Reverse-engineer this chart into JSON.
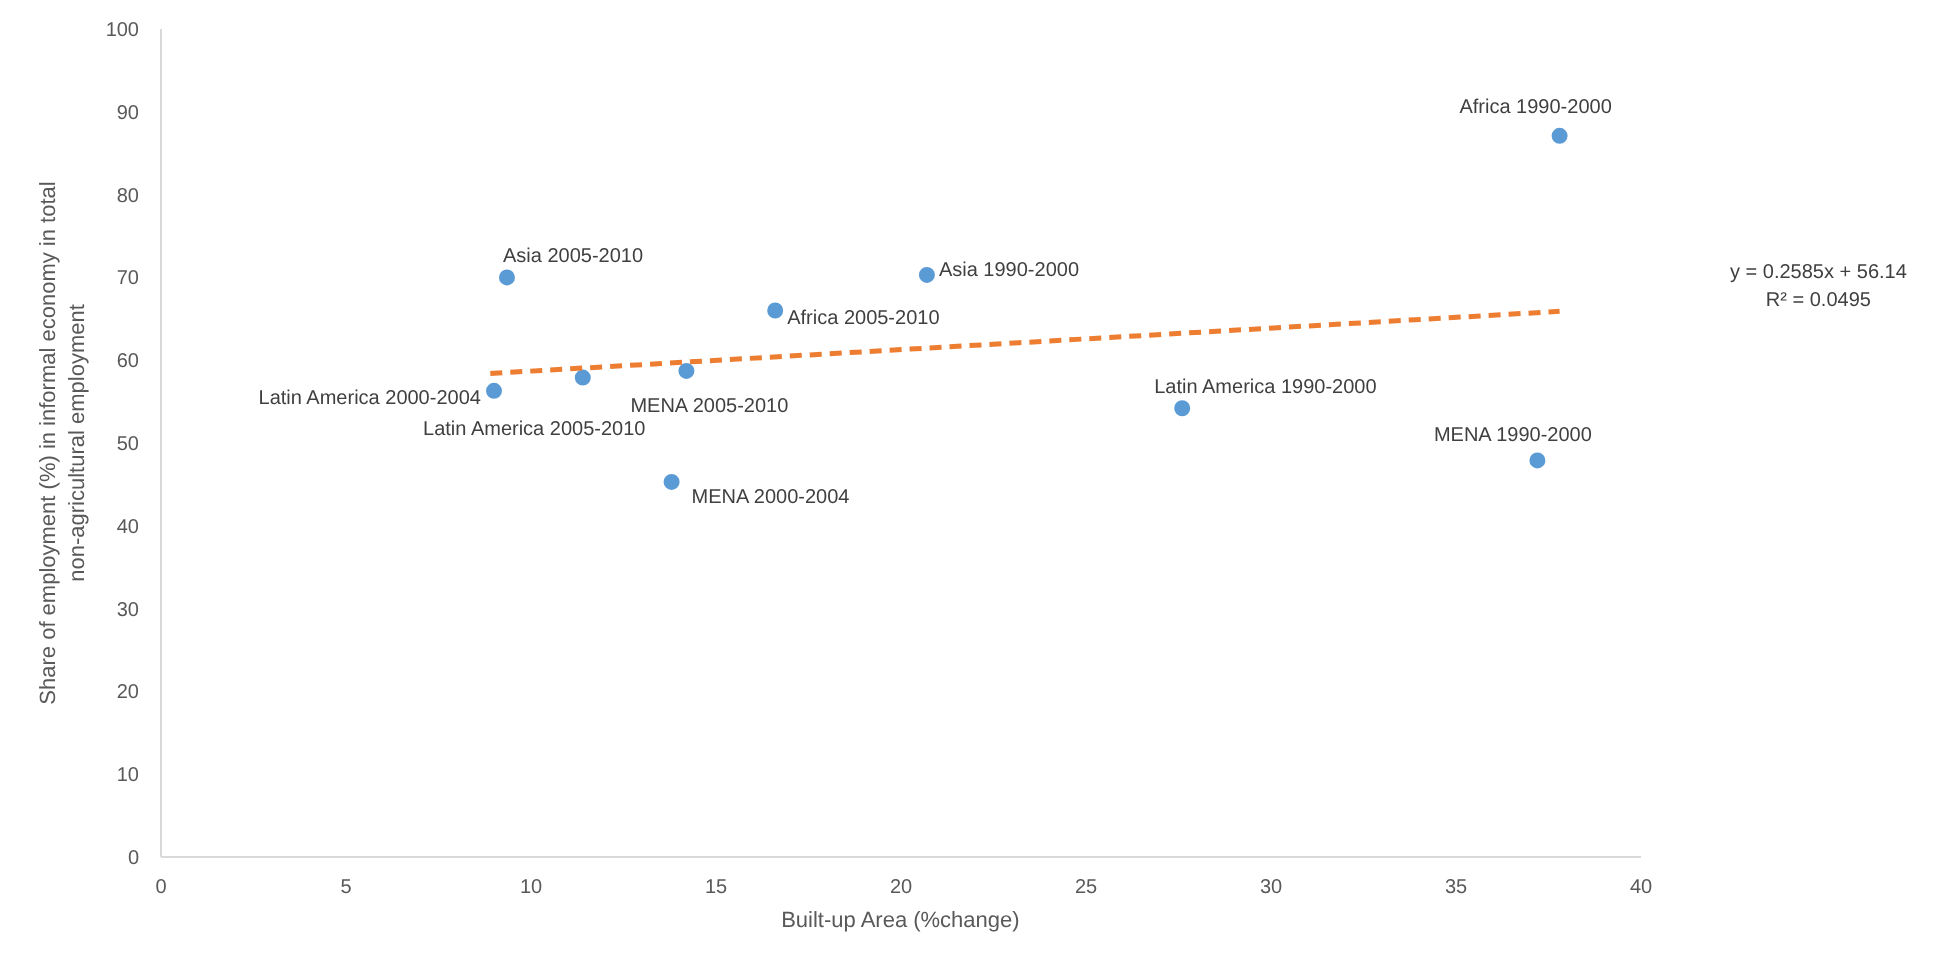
{
  "chart_data": {
    "type": "scatter",
    "xlabel": "Built-up Area (%change)",
    "ylabel": "Share of employment (%) in informal economy in total non-agricultural employment",
    "xlim": [
      0,
      40
    ],
    "xticks": [
      0,
      5,
      10,
      15,
      20,
      25,
      30,
      35,
      40
    ],
    "ylim": [
      0,
      100
    ],
    "yticks": [
      0,
      10,
      20,
      30,
      40,
      50,
      60,
      70,
      80,
      90,
      100
    ],
    "grid": false,
    "marker": "circle",
    "series": [
      {
        "color": "#5b9bd5",
        "x": [
          37.8,
          9.35,
          20.7,
          16.6,
          9.0,
          11.4,
          14.2,
          13.8,
          27.6,
          37.2
        ],
        "values": [
          87.1,
          70.0,
          70.3,
          66.0,
          56.3,
          57.9,
          58.7,
          45.3,
          54.2,
          47.9
        ]
      },
      {
        "type": "line",
        "color": "#ed7d31",
        "line_style": "dashed",
        "marker": "none",
        "x": [
          8.9,
          37.8
        ],
        "values": [
          58.4,
          65.9
        ]
      }
    ],
    "annotations": [
      {
        "text": "Africa 1990-2000",
        "x": 37.8,
        "y": 87.1
      },
      {
        "text": "Asia 2005-2010",
        "x": 9.35,
        "y": 70.0
      },
      {
        "text": "Asia 1990-2000",
        "x": 20.7,
        "y": 70.3
      },
      {
        "text": "Africa 2005-2010",
        "x": 16.6,
        "y": 66.0
      },
      {
        "text": "Latin America 2000-2004",
        "x": 9.0,
        "y": 56.3
      },
      {
        "text": "Latin America 2005-2010",
        "x": 11.4,
        "y": 57.9
      },
      {
        "text": "MENA 2005-2010",
        "x": 14.2,
        "y": 58.7
      },
      {
        "text": "MENA 2000-2004",
        "x": 13.8,
        "y": 45.3
      },
      {
        "text": "Latin America 1990-2000",
        "x": 27.6,
        "y": 54.2
      },
      {
        "text": "MENA 1990-2000",
        "x": 37.2,
        "y": 47.9
      },
      "y = 0.2585x + 56.14",
      "R² = 0.0495"
    ]
  }
}
